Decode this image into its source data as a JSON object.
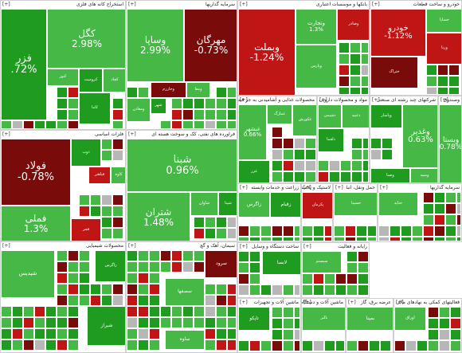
{
  "chart_data": {
    "type": "heatmap",
    "colors": {
      "strong_up": "#1f9b1f",
      "up": "#45b845",
      "flat": "#b7b7b7",
      "down": "#c01515",
      "strong_down": "#7a0b0b"
    },
    "sectors": [
      {
        "name": "استخراج کانه های فلزی",
        "plus": "[+]",
        "tiles": [
          {
            "symbol": "کگل",
            "change": "2.98%"
          },
          {
            "symbol": "فزر",
            "change": ".72%"
          },
          {
            "symbol": "کنور",
            "change": ""
          },
          {
            "symbol": "کروميت",
            "change": ""
          },
          {
            "symbol": "کاما",
            "change": ""
          },
          {
            "symbol": "کچاد",
            "change": ""
          }
        ]
      },
      {
        "name": "سرمایه گذاریها",
        "plus": "[+]",
        "tiles": [
          {
            "symbol": "وساپا",
            "change": "2.99%"
          },
          {
            "symbol": "مهرگان",
            "change": "-0.73%"
          },
          {
            "symbol": "وخارزم",
            "change": ""
          },
          {
            "symbol": "ومعادن",
            "change": ""
          },
          {
            "symbol": "شهر",
            "change": ""
          },
          {
            "symbol": "ومعا",
            "change": ""
          }
        ]
      },
      {
        "name": "بانکها و موسسات اعتباری",
        "plus": "[+]",
        "tiles": [
          {
            "symbol": "وبملت",
            "change": "-1.24%"
          },
          {
            "symbol": "وتجارت",
            "change": "1.3%"
          },
          {
            "symbol": "وصادر",
            "change": ""
          },
          {
            "symbol": "وپارس",
            "change": ""
          }
        ]
      },
      {
        "name": "خودرو و ساخت قطعات",
        "plus": "[+]",
        "tiles": [
          {
            "symbol": "خودرو",
            "change": "-1.12%"
          },
          {
            "symbol": "خساپا",
            "change": ""
          },
          {
            "symbol": "ورنا",
            "change": ""
          },
          {
            "symbol": "ختراک",
            "change": ""
          }
        ]
      },
      {
        "name": "فلزات اساسی",
        "plus": "[+]",
        "tiles": [
          {
            "symbol": "فولاد",
            "change": "-0.78%"
          },
          {
            "symbol": "فملی",
            "change": "1.3%"
          },
          {
            "symbol": "فباهنر",
            "change": ""
          },
          {
            "symbol": "کاوه",
            "change": ""
          },
          {
            "symbol": "ذوب",
            "change": ""
          },
          {
            "symbol": "فجر",
            "change": ""
          }
        ]
      },
      {
        "name": "فراورده های نفتی، کک و سوخت هسته ای",
        "plus": "[+]",
        "tiles": [
          {
            "symbol": "شبنا",
            "change": "0.96%"
          },
          {
            "symbol": "شتران",
            "change": "1.48%"
          },
          {
            "symbol": "شاوان",
            "change": ""
          },
          {
            "symbol": "شپنا",
            "change": ""
          }
        ]
      },
      {
        "name": "محصولات غذایی و آشامیدنی به جز قند",
        "plus": "[+]",
        "tiles": [
          {
            "symbol": "غبشهر",
            "change": "0.66%"
          },
          {
            "symbol": "غزر",
            "change": ""
          },
          {
            "symbol": "غمارگ",
            "change": ""
          },
          {
            "symbol": "غکورش",
            "change": ""
          }
        ]
      },
      {
        "name": "مواد و محصولات دارویی",
        "plus": "[+]",
        "tiles": [
          {
            "symbol": "دشیمی",
            "change": ""
          },
          {
            "symbol": "دعبید",
            "change": ""
          },
          {
            "symbol": "دلقما",
            "change": ""
          }
        ]
      },
      {
        "name": "شرکتهای چند رشته ای صنعتی",
        "plus": "[+]",
        "tiles": [
          {
            "symbol": "وغدير",
            "change": "0.63%"
          },
          {
            "symbol": "وپاسار",
            "change": ""
          },
          {
            "symbol": "وصنا",
            "change": ""
          },
          {
            "symbol": "وسپه",
            "change": ""
          }
        ]
      },
      {
        "name": "وصندوق",
        "plus": "[+]",
        "tiles": [
          {
            "symbol": "وبستا",
            "change": "0.78%"
          }
        ]
      },
      {
        "name": "زراعت و خدمات وابسته",
        "plus": "[+]",
        "tiles": [
          {
            "symbol": "زاگرس",
            "change": ""
          },
          {
            "symbol": "زقيام",
            "change": ""
          }
        ]
      },
      {
        "name": "لاستیک و پلاستیک",
        "plus": "[+]",
        "tiles": [
          {
            "symbol": "پکرمان",
            "change": ""
          }
        ]
      },
      {
        "name": "حمل ونقل، انبا",
        "plus": "[+]",
        "tiles": [
          {
            "symbol": "حسینا",
            "change": ""
          }
        ]
      },
      {
        "name": "سرمایه گذاریها",
        "plus": "[+]",
        "tiles": [
          {
            "symbol": "حتاید",
            "change": ""
          }
        ]
      },
      {
        "name": "محصولات شیمیایی",
        "plus": "[+]",
        "tiles": [
          {
            "symbol": "شپدیس",
            "change": ""
          },
          {
            "symbol": "زاگرس",
            "change": ""
          },
          {
            "symbol": "شیراز",
            "change": ""
          }
        ]
      },
      {
        "name": "سیمان، آهک و گچ",
        "plus": "[+]",
        "tiles": [
          {
            "symbol": "سرود",
            "change": ""
          },
          {
            "symbol": "سصفها",
            "change": ""
          },
          {
            "symbol": "ساوه",
            "change": ""
          }
        ]
      },
      {
        "name": "ساخت دستگاه و وسایل",
        "plus": "[+]",
        "tiles": [
          {
            "symbol": "لابسا",
            "change": ""
          }
        ]
      },
      {
        "name": "رایانه و فعالیت",
        "plus": "[+]",
        "tiles": [
          {
            "symbol": "سیستم",
            "change": ""
          }
        ]
      },
      {
        "name": "ماشین آلات و تجهیزات",
        "plus": "[+]",
        "tiles": [
          {
            "symbol": "تاپکو",
            "change": ""
          }
        ]
      },
      {
        "name": "ماشین آلات و دستگاههای برقی",
        "plus": "[+]",
        "tiles": [
          {
            "symbol": "بالبر",
            "change": ""
          }
        ]
      },
      {
        "name": "عرضه برق، گاز",
        "plus": "[+]",
        "tiles": [
          {
            "symbol": "بمپنا",
            "change": ""
          }
        ]
      },
      {
        "name": "فعالیتهای کمکی به نهادهای مالی",
        "plus": "[+]",
        "tiles": [
          {
            "symbol": "اوراق",
            "change": ""
          }
        ]
      }
    ]
  }
}
